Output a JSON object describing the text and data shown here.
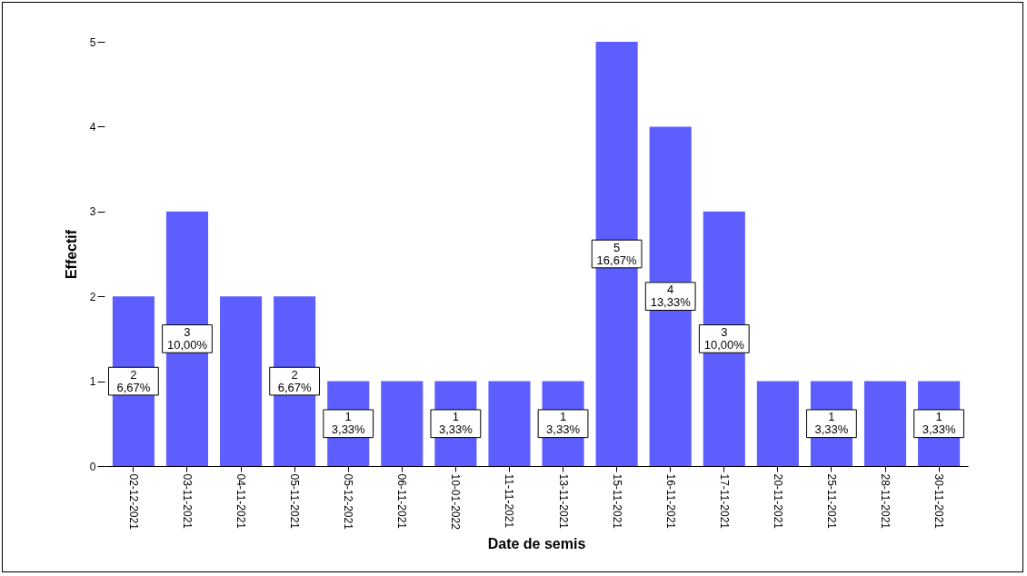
{
  "chart_data": {
    "type": "bar",
    "xlabel": "Date de semis",
    "ylabel": "Effectif",
    "categories": [
      "02-12-2021",
      "03-11-2021",
      "04-11-2021",
      "05-11-2021",
      "05-12-2021",
      "06-11-2021",
      "10-01-2022",
      "11-11-2021",
      "13-11-2021",
      "15-11-2021",
      "16-11-2021",
      "17-11-2021",
      "20-11-2021",
      "25-11-2021",
      "28-11-2021",
      "30-11-2021"
    ],
    "values": [
      2,
      3,
      2,
      2,
      1,
      1,
      1,
      1,
      1,
      5,
      4,
      3,
      1,
      1,
      1,
      1
    ],
    "value_labels": [
      "2\n6,67%",
      "3\n10,00%",
      null,
      "2\n6,67%",
      "1\n3,33%",
      null,
      "1\n3,33%",
      null,
      "1\n3,33%",
      "5\n16,67%",
      "4\n13,33%",
      "3\n10,00%",
      null,
      "1\n3,33%",
      null,
      "1\n3,33%"
    ],
    "color": "#5e5eff",
    "ylim": [
      0,
      5
    ],
    "yticks": [
      0,
      1,
      2,
      3,
      4,
      5
    ]
  }
}
